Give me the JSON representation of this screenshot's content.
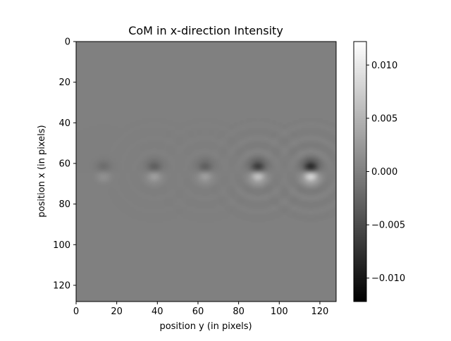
{
  "chart_data": {
    "type": "heatmap",
    "title": "CoM in x-direction Intensity",
    "xlabel": "position y (in pixels)",
    "ylabel": "position x (in pixels)",
    "xlim": [
      0,
      128
    ],
    "ylim": [
      128,
      0
    ],
    "x_ticks": [
      0,
      20,
      40,
      60,
      80,
      100,
      120
    ],
    "y_ticks": [
      0,
      20,
      40,
      60,
      80,
      100,
      120
    ],
    "colormap": "gray",
    "background_value": 0.0,
    "colorbar": {
      "min": -0.0122,
      "max": 0.0122,
      "ticks": [
        0.01,
        0.005,
        0.0,
        -0.005,
        -0.01
      ],
      "tick_labels": [
        "0.010",
        "0.005",
        "0.000",
        "−0.005",
        "−0.010"
      ]
    },
    "features": [
      {
        "center_y": 13,
        "center_x": 63.5,
        "peak": 0.0025,
        "ring_strength": 0.0
      },
      {
        "center_y": 38,
        "center_x": 63.5,
        "peak": 0.0045,
        "ring_strength": 0.0003
      },
      {
        "center_y": 63,
        "center_x": 63.5,
        "peak": 0.0045,
        "ring_strength": 0.0004
      },
      {
        "center_y": 89,
        "center_x": 63.5,
        "peak": 0.0095,
        "ring_strength": 0.0009
      },
      {
        "center_y": 115,
        "center_x": 63.5,
        "peak": 0.0122,
        "ring_strength": 0.0011
      }
    ]
  }
}
